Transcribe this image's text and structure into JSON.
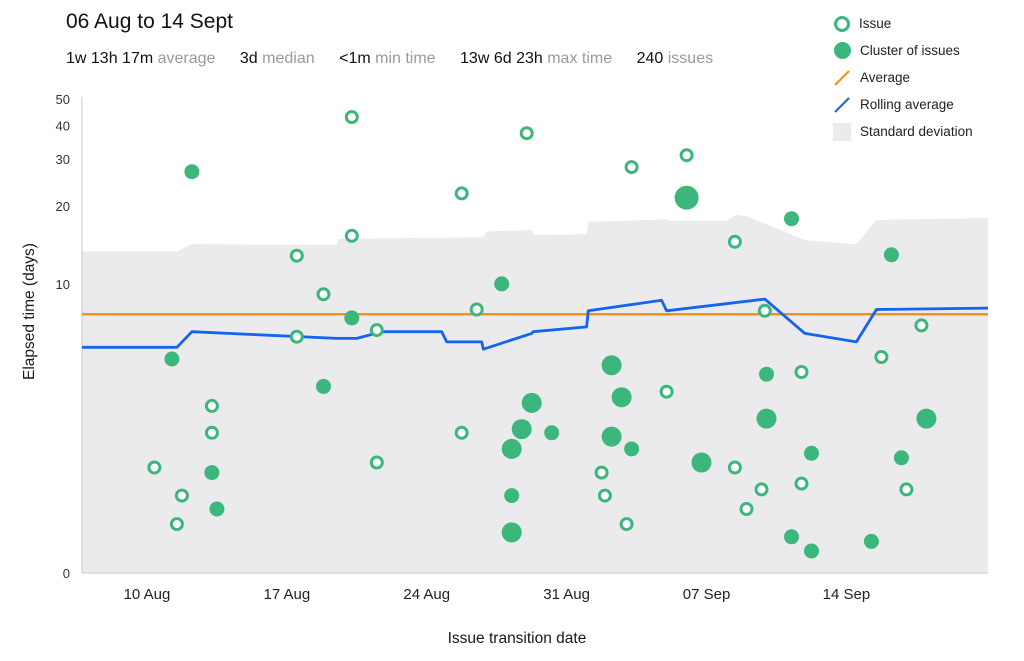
{
  "header": {
    "title": "06 Aug to 14 Sept",
    "stats": [
      {
        "value": "1w 13h 17m",
        "label": "average"
      },
      {
        "value": "3d",
        "label": "median"
      },
      {
        "value": "<1m",
        "label": "min time"
      },
      {
        "value": "13w 6d 23h",
        "label": "max time"
      },
      {
        "value": "240",
        "label": "issues"
      }
    ]
  },
  "legend": {
    "issue": "Issue",
    "cluster": "Cluster of issues",
    "average": "Average",
    "rolling": "Rolling average",
    "stddev": "Standard deviation"
  },
  "colors": {
    "issue": "#3cb77c",
    "average": "#f5901e",
    "rolling": "#1464f0",
    "stddev": "#ebebed",
    "axis": "#c9c9c9"
  },
  "chart_data": {
    "type": "scatter",
    "title": "06 Aug to 14 Sept",
    "xlabel": "Issue transition date",
    "ylabel": "Elapsed time (days)",
    "y_scale": "log",
    "y_ticks": [
      0,
      10,
      20,
      30,
      40,
      50
    ],
    "x_ticks": [
      "10 Aug",
      "17 Aug",
      "24 Aug",
      "31 Aug",
      "07 Sep",
      "14 Sep"
    ],
    "x_tick_dates": [
      "2020-08-10",
      "2020-08-17",
      "2020-08-24",
      "2020-08-31",
      "2020-09-07",
      "2020-09-14"
    ],
    "x_range": [
      "2020-08-06T18:00",
      "2020-09-21T02:00"
    ],
    "average": 7.55,
    "rolling_average": [
      {
        "x": "2020-08-06T18:00",
        "y": 5.5
      },
      {
        "x": "2020-08-10T18:00",
        "y": 5.5
      },
      {
        "x": "2020-08-11T12:00",
        "y": 5.5
      },
      {
        "x": "2020-08-12T06:00",
        "y": 6.4
      },
      {
        "x": "2020-08-19T12:00",
        "y": 6.0
      },
      {
        "x": "2020-08-20T12:00",
        "y": 6.0
      },
      {
        "x": "2020-08-21T18:00",
        "y": 6.4
      },
      {
        "x": "2020-08-24T18:00",
        "y": 6.4
      },
      {
        "x": "2020-08-25T00:00",
        "y": 5.8
      },
      {
        "x": "2020-08-26T18:00",
        "y": 5.8
      },
      {
        "x": "2020-08-26T20:00",
        "y": 5.4
      },
      {
        "x": "2020-08-29T06:00",
        "y": 6.3
      },
      {
        "x": "2020-08-29T08:00",
        "y": 6.4
      },
      {
        "x": "2020-09-01T00:00",
        "y": 6.7
      },
      {
        "x": "2020-09-01T02:00",
        "y": 7.8
      },
      {
        "x": "2020-09-04T18:00",
        "y": 8.6
      },
      {
        "x": "2020-09-05T00:00",
        "y": 7.8
      },
      {
        "x": "2020-09-09T22:00",
        "y": 8.7
      },
      {
        "x": "2020-09-11T22:00",
        "y": 6.3
      },
      {
        "x": "2020-09-14T12:00",
        "y": 5.8
      },
      {
        "x": "2020-09-15T12:00",
        "y": 7.9
      },
      {
        "x": "2020-09-21T02:00",
        "y": 8.0
      }
    ],
    "std_dev_upper": [
      {
        "x": "2020-08-06T18:00",
        "y": 13.4
      },
      {
        "x": "2020-08-11T12:00",
        "y": 13.4
      },
      {
        "x": "2020-08-12T06:00",
        "y": 14.3
      },
      {
        "x": "2020-08-19T12:00",
        "y": 14.2
      },
      {
        "x": "2020-08-19T14:00",
        "y": 15.0
      },
      {
        "x": "2020-08-26T20:00",
        "y": 15.2
      },
      {
        "x": "2020-08-27T00:00",
        "y": 16.0
      },
      {
        "x": "2020-08-29T06:00",
        "y": 16.2
      },
      {
        "x": "2020-08-29T08:00",
        "y": 15.5
      },
      {
        "x": "2020-09-01T00:00",
        "y": 15.6
      },
      {
        "x": "2020-09-01T02:00",
        "y": 17.4
      },
      {
        "x": "2020-09-05T00:00",
        "y": 17.8
      },
      {
        "x": "2020-09-05T04:00",
        "y": 17.6
      },
      {
        "x": "2020-09-08T00:00",
        "y": 17.6
      },
      {
        "x": "2020-09-08T12:00",
        "y": 18.5
      },
      {
        "x": "2020-09-09T00:00",
        "y": 18.3
      },
      {
        "x": "2020-09-11T22:00",
        "y": 14.8
      },
      {
        "x": "2020-09-14T12:00",
        "y": 14.3
      },
      {
        "x": "2020-09-15T12:00",
        "y": 17.7
      },
      {
        "x": "2020-09-21T02:00",
        "y": 18.0
      }
    ],
    "issues": [
      {
        "x": "2020-08-10T09:00",
        "y": 1.4
      },
      {
        "x": "2020-08-11T12:00",
        "y": 0.5
      },
      {
        "x": "2020-08-11T18:00",
        "y": 0.9
      },
      {
        "x": "2020-08-13T06:00",
        "y": 2.2
      },
      {
        "x": "2020-08-13T06:00",
        "y": 3.0
      },
      {
        "x": "2020-08-17T12:00",
        "y": 12.9
      },
      {
        "x": "2020-08-17T12:00",
        "y": 6.1
      },
      {
        "x": "2020-08-18T20:00",
        "y": 9.1
      },
      {
        "x": "2020-08-20T06:00",
        "y": 42.9
      },
      {
        "x": "2020-08-20T06:00",
        "y": 15.4
      },
      {
        "x": "2020-08-21T12:00",
        "y": 1.5
      },
      {
        "x": "2020-08-21T12:00",
        "y": 6.5
      },
      {
        "x": "2020-08-25T18:00",
        "y": 22.3
      },
      {
        "x": "2020-08-25T18:00",
        "y": 2.2
      },
      {
        "x": "2020-08-26T12:00",
        "y": 7.9
      },
      {
        "x": "2020-08-29T00:00",
        "y": 37.4
      },
      {
        "x": "2020-09-01T18:00",
        "y": 1.3
      },
      {
        "x": "2020-09-01T22:00",
        "y": 0.9
      },
      {
        "x": "2020-09-03T00:00",
        "y": 0.5
      },
      {
        "x": "2020-09-03T06:00",
        "y": 28.0
      },
      {
        "x": "2020-09-05T00:00",
        "y": 3.5
      },
      {
        "x": "2020-09-06T00:00",
        "y": 31.0
      },
      {
        "x": "2020-09-08T10:00",
        "y": 14.6
      },
      {
        "x": "2020-09-08T10:00",
        "y": 1.4
      },
      {
        "x": "2020-09-09T00:00",
        "y": 0.7
      },
      {
        "x": "2020-09-09T18:00",
        "y": 1.0
      },
      {
        "x": "2020-09-09T22:00",
        "y": 7.8
      },
      {
        "x": "2020-09-11T18:00",
        "y": 4.3
      },
      {
        "x": "2020-09-11T18:00",
        "y": 1.1
      },
      {
        "x": "2020-09-15T18:00",
        "y": 5.0
      },
      {
        "x": "2020-09-17T00:00",
        "y": 1.0
      },
      {
        "x": "2020-09-17T18:00",
        "y": 6.8
      }
    ],
    "clusters": [
      {
        "x": "2020-08-11T06:00",
        "y": 4.9,
        "size": "small"
      },
      {
        "x": "2020-08-12T06:00",
        "y": 26.9,
        "size": "small"
      },
      {
        "x": "2020-08-13T06:00",
        "y": 1.3,
        "size": "small"
      },
      {
        "x": "2020-08-13T12:00",
        "y": 0.7,
        "size": "small"
      },
      {
        "x": "2020-08-18T20:00",
        "y": 3.7,
        "size": "small"
      },
      {
        "x": "2020-08-20T06:00",
        "y": 7.3,
        "size": "small"
      },
      {
        "x": "2020-08-27T18:00",
        "y": 10.0,
        "size": "small"
      },
      {
        "x": "2020-08-28T06:00",
        "y": 1.8,
        "size": "medium"
      },
      {
        "x": "2020-08-28T06:00",
        "y": 0.9,
        "size": "small"
      },
      {
        "x": "2020-08-28T06:00",
        "y": 0.4,
        "size": "medium"
      },
      {
        "x": "2020-08-28T18:00",
        "y": 2.3,
        "size": "medium"
      },
      {
        "x": "2020-08-29T06:00",
        "y": 3.1,
        "size": "medium"
      },
      {
        "x": "2020-08-30T06:00",
        "y": 2.2,
        "size": "small"
      },
      {
        "x": "2020-09-02T06:00",
        "y": 4.6,
        "size": "medium"
      },
      {
        "x": "2020-09-02T06:00",
        "y": 2.1,
        "size": "medium"
      },
      {
        "x": "2020-09-02T18:00",
        "y": 3.3,
        "size": "medium"
      },
      {
        "x": "2020-09-03T06:00",
        "y": 1.8,
        "size": "small"
      },
      {
        "x": "2020-09-06T00:00",
        "y": 21.5,
        "size": "large"
      },
      {
        "x": "2020-09-06T18:00",
        "y": 1.5,
        "size": "medium"
      },
      {
        "x": "2020-09-10T00:00",
        "y": 4.2,
        "size": "small"
      },
      {
        "x": "2020-09-10T00:00",
        "y": 2.6,
        "size": "medium"
      },
      {
        "x": "2020-09-11T06:00",
        "y": 17.9,
        "size": "small"
      },
      {
        "x": "2020-09-11T06:00",
        "y": 0.35,
        "size": "small"
      },
      {
        "x": "2020-09-12T06:00",
        "y": 1.7,
        "size": "small"
      },
      {
        "x": "2020-09-12T06:00",
        "y": 0.2,
        "size": "small"
      },
      {
        "x": "2020-09-15T06:00",
        "y": 0.3,
        "size": "small"
      },
      {
        "x": "2020-09-16T06:00",
        "y": 13.0,
        "size": "small"
      },
      {
        "x": "2020-09-16T18:00",
        "y": 1.6,
        "size": "small"
      },
      {
        "x": "2020-09-18T00:00",
        "y": 2.6,
        "size": "medium"
      }
    ]
  }
}
